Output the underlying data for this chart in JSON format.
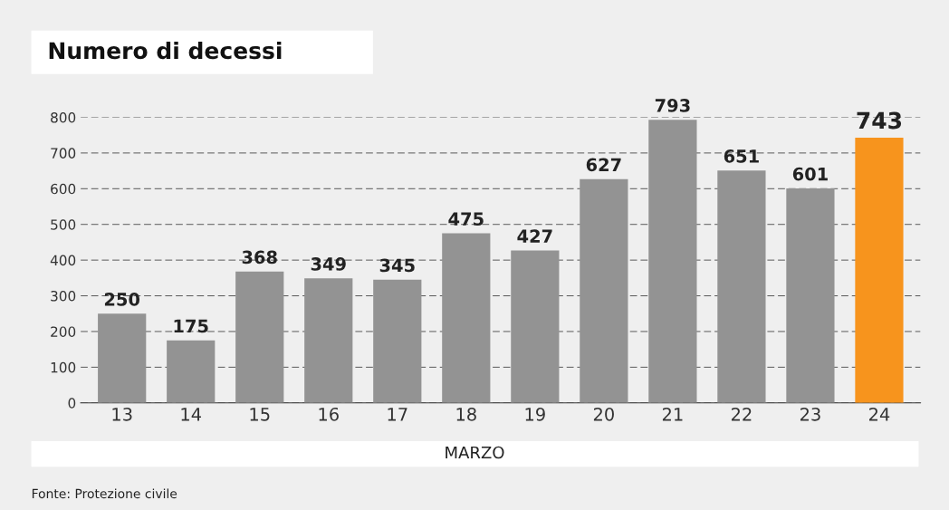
{
  "chart_data": {
    "type": "bar",
    "title": "Numero di decessi",
    "xlabel": "MARZO",
    "categories": [
      "13",
      "14",
      "15",
      "16",
      "17",
      "18",
      "19",
      "20",
      "21",
      "22",
      "23",
      "24"
    ],
    "values": [
      250,
      175,
      368,
      349,
      345,
      475,
      427,
      627,
      793,
      651,
      601,
      743
    ],
    "colors": [
      "#939393",
      "#939393",
      "#939393",
      "#939393",
      "#939393",
      "#939393",
      "#939393",
      "#939393",
      "#939393",
      "#939393",
      "#939393",
      "#f7941d"
    ],
    "ylim": [
      0,
      800
    ],
    "yticks": [
      0,
      100,
      200,
      300,
      400,
      500,
      600,
      700,
      800
    ],
    "grid": "y",
    "data_labels": true,
    "annotations": [
      "Fonte: Protezione civile"
    ]
  }
}
